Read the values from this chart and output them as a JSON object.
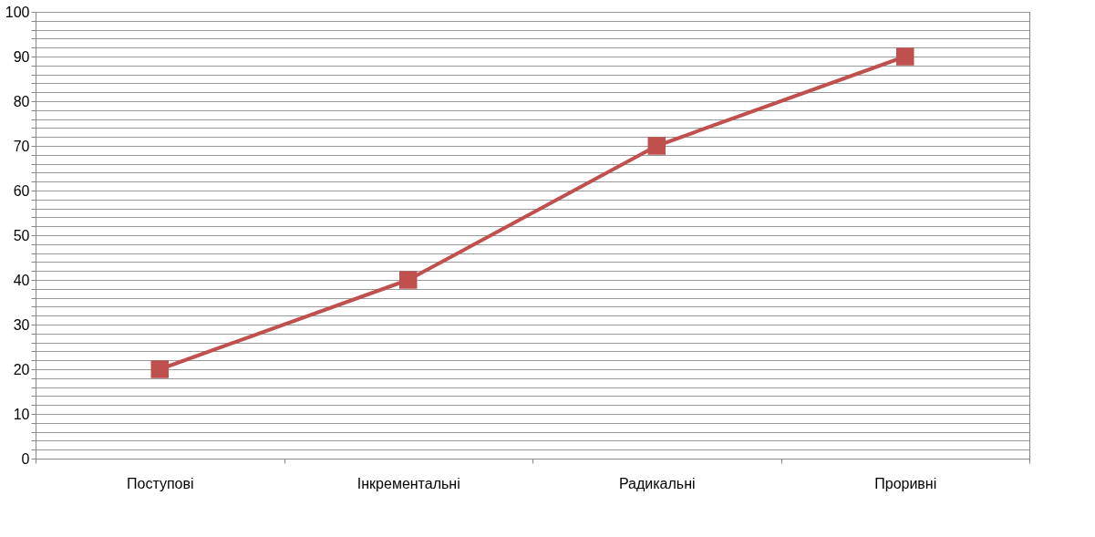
{
  "chart_data": {
    "type": "line",
    "categories": [
      "Поступові",
      "Інкрементальні",
      "Радикальні",
      "Проривні"
    ],
    "series": [
      {
        "color": "#c0504d",
        "values": [
          20,
          40,
          70,
          90
        ]
      }
    ],
    "ylim": [
      0,
      100
    ],
    "yticks": [
      0,
      {
        "value": 2,
        "label": null
      },
      {
        "value": 4,
        "label": null
      },
      {
        "value": 6,
        "label": null
      },
      {
        "value": 8,
        "label": null
      },
      10,
      {
        "value": 12,
        "label": null
      },
      {
        "value": 14,
        "label": null
      },
      {
        "value": 16,
        "label": null
      },
      {
        "value": 18,
        "label": null
      },
      20,
      {
        "value": 22,
        "label": null
      },
      {
        "value": 24,
        "label": null
      },
      {
        "value": 26,
        "label": null
      },
      {
        "value": 28,
        "label": null
      },
      30,
      {
        "value": 32,
        "label": null
      },
      {
        "value": 34,
        "label": null
      },
      {
        "value": 36,
        "label": null
      },
      {
        "value": 38,
        "label": null
      },
      40,
      {
        "value": 42,
        "label": null
      },
      {
        "value": 44,
        "label": null
      },
      {
        "value": 46,
        "label": null
      },
      {
        "value": 48,
        "label": null
      },
      50,
      {
        "value": 52,
        "label": null
      },
      {
        "value": 54,
        "label": null
      },
      {
        "value": 56,
        "label": null
      },
      {
        "value": 58,
        "label": null
      },
      60,
      {
        "value": 62,
        "label": null
      },
      {
        "value": 64,
        "label": null
      },
      {
        "value": 66,
        "label": null
      },
      {
        "value": 68,
        "label": null
      },
      70,
      {
        "value": 72,
        "label": null
      },
      {
        "value": 74,
        "label": null
      },
      {
        "value": 76,
        "label": null
      },
      {
        "value": 78,
        "label": null
      },
      80,
      {
        "value": 82,
        "label": null
      },
      {
        "value": 84,
        "label": null
      },
      {
        "value": 86,
        "label": null
      },
      {
        "value": 88,
        "label": null
      },
      90,
      {
        "value": 92,
        "label": null
      },
      {
        "value": 94,
        "label": null
      },
      {
        "value": 96,
        "label": null
      },
      {
        "value": 98,
        "label": null
      },
      100
    ],
    "grid": "y",
    "marker": "square",
    "line_style": "solid"
  }
}
